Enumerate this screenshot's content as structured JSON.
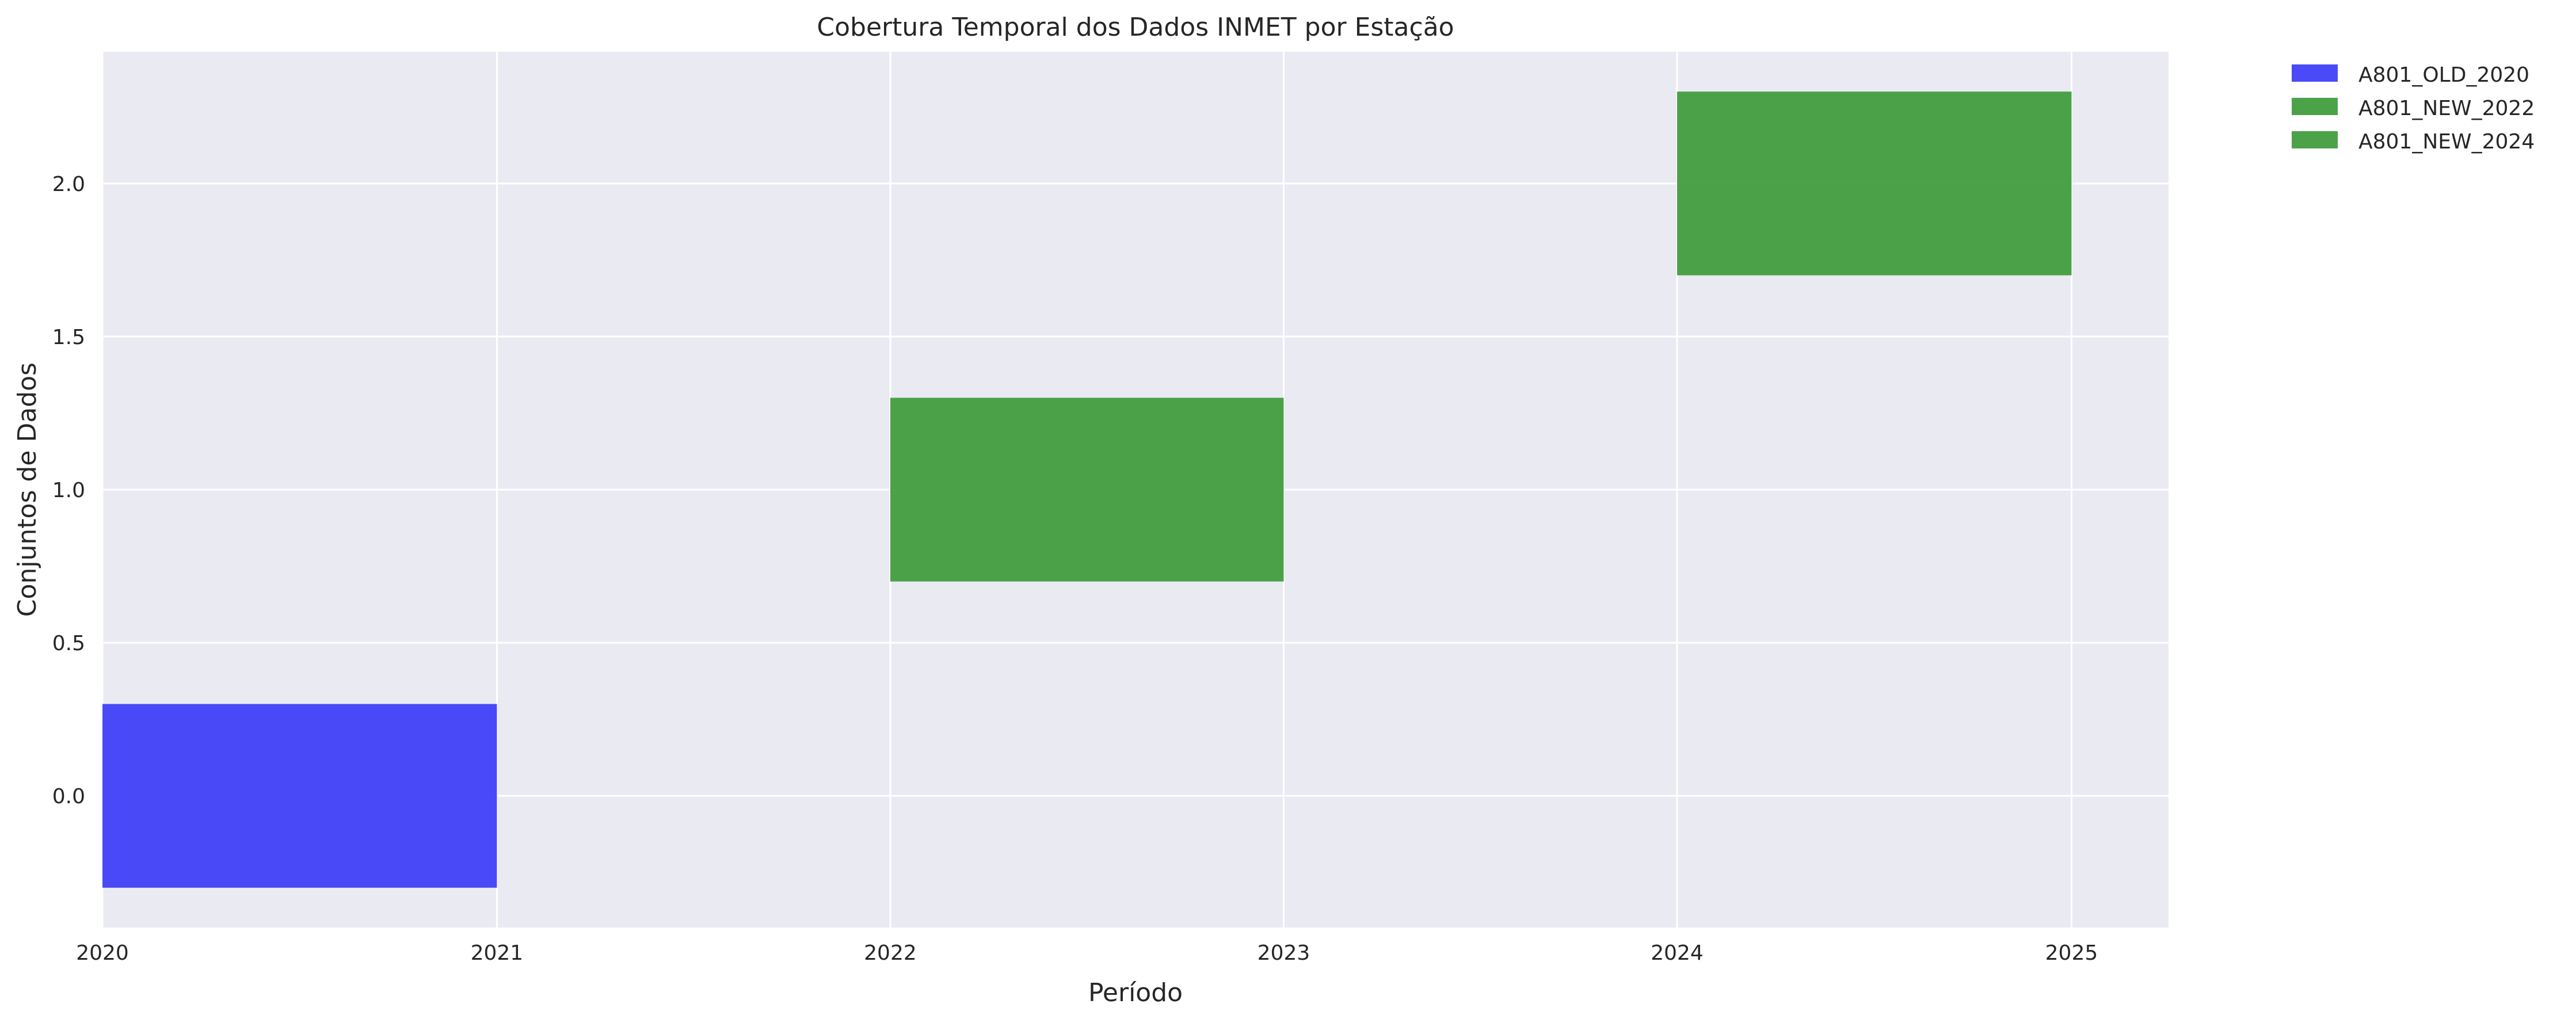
{
  "chart_data": {
    "type": "bar",
    "orientation": "horizontal-timeline",
    "title": "Cobertura Temporal dos Dados INMET por Estação",
    "xlabel": "Período",
    "ylabel": "Conjuntos de Dados",
    "xlim": [
      "2020-01-01",
      "2025-04-01"
    ],
    "ylim": [
      -0.43,
      2.43
    ],
    "x_ticks": [
      "2020",
      "2021",
      "2022",
      "2023",
      "2024",
      "2025"
    ],
    "y_ticks": [
      "0.0",
      "0.5",
      "1.0",
      "1.5",
      "2.0"
    ],
    "grid": true,
    "legend_position": "outside-top-right",
    "series": [
      {
        "name": "A801_OLD_2020",
        "start": "2020-01-01",
        "end": "2021-01-01",
        "y": 0,
        "height": 0.6,
        "color": "#3b3bf7"
      },
      {
        "name": "A801_NEW_2022",
        "start": "2022-01-01",
        "end": "2023-01-01",
        "y": 1,
        "height": 0.6,
        "color": "#3d9a3a"
      },
      {
        "name": "A801_NEW_2024",
        "start": "2024-01-01",
        "end": "2025-01-01",
        "y": 2,
        "height": 0.6,
        "color": "#3d9a3a"
      }
    ]
  }
}
